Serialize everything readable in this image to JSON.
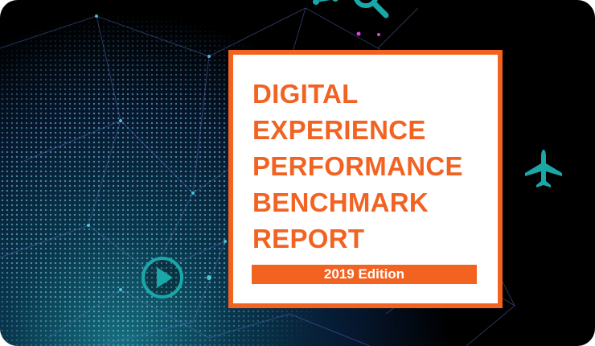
{
  "card": {
    "title_lines": [
      "DIGITAL",
      "EXPERIENCE",
      "PERFORMANCE",
      "BENCHMARK",
      "REPORT"
    ],
    "edition": "2019 Edition"
  },
  "icons": [
    "search-icon",
    "airplane-icon",
    "play-icon"
  ],
  "colors": {
    "accent": "#f26322",
    "teal": "#1aa7a8",
    "background": "#000000"
  }
}
